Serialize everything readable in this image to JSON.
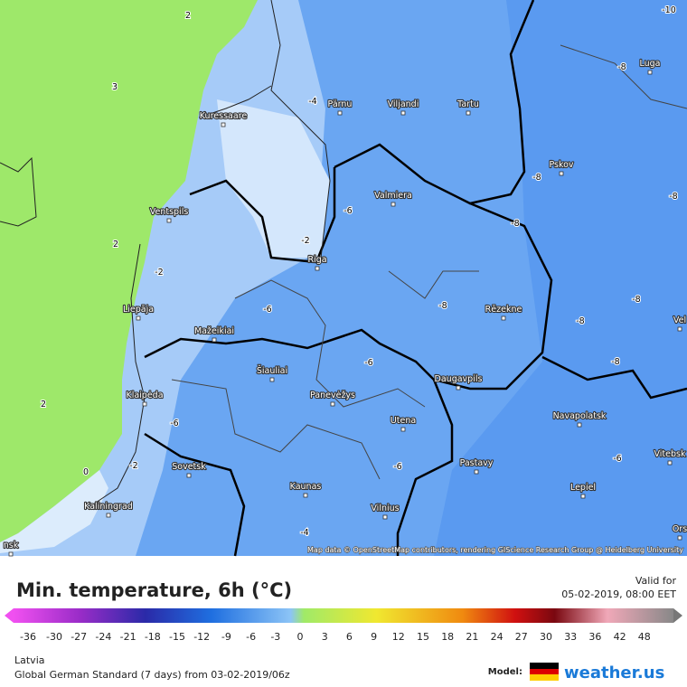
{
  "map": {
    "contour_labels": [
      -10,
      3,
      2,
      2,
      2,
      0,
      -2,
      -2,
      -4,
      -6,
      -6,
      -6,
      -6,
      -6,
      -8,
      -8,
      -8,
      -8,
      -8,
      -8,
      -8,
      -8,
      -6,
      -4,
      -2
    ],
    "cities": [
      "Pärnu",
      "Viljandi",
      "Tartu",
      "Luga",
      "Kuressaare",
      "Pskov",
      "Valmiera",
      "Ventspils",
      "Riga",
      "Rēzekne",
      "Liepāja",
      "Mažeikiai",
      "Šiauliai",
      "Daugavpils",
      "Panevėžys",
      "Klaipėda",
      "Navapolatsk",
      "Utena",
      "Vitebsk",
      "Sovetsk",
      "Pastavy",
      "Kaunas",
      "Lepiel",
      "Vilnius",
      "Kaliningrad",
      "Vel",
      "Ors",
      "nsk"
    ],
    "attribution": "Map data © OpenStreetMap contributors, rendering GIScience Research Group @ Heidelberg University"
  },
  "legend": {
    "title": "Min. temperature, 6h (°C)",
    "valid_label": "Valid for",
    "valid_time": "05-02-2019, 08:00 EET",
    "scale_ticks": [
      -36,
      -30,
      -27,
      -24,
      -21,
      -18,
      -15,
      -12,
      -9,
      -6,
      -3,
      0,
      3,
      6,
      9,
      12,
      15,
      18,
      21,
      24,
      27,
      30,
      33,
      36,
      42,
      48
    ]
  },
  "footer": {
    "region": "Latvia",
    "model_run": "Global German Standard (7 days) from 03-02-2019/06z",
    "model_label": "Model:",
    "brand": "weather.us"
  }
}
